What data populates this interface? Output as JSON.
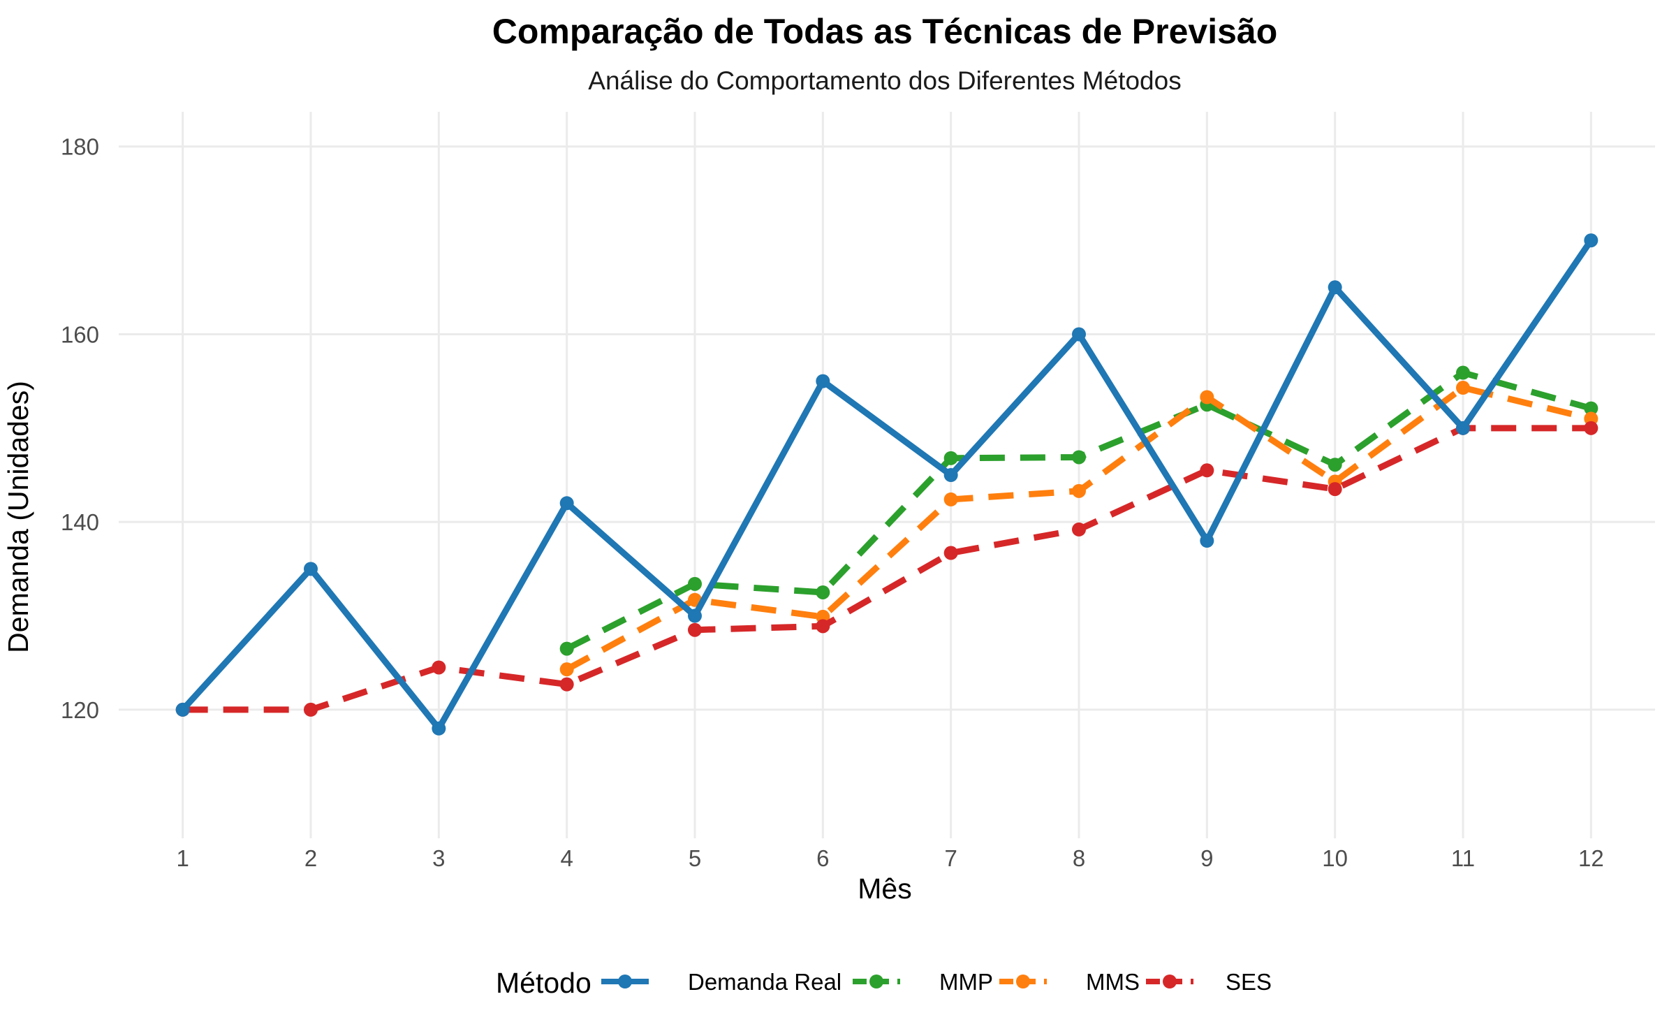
{
  "chart_data": {
    "type": "line",
    "title": "Comparação de Todas as Técnicas de Previsão",
    "subtitle": "Análise do Comportamento dos Diferentes Métodos",
    "xlabel": "Mês",
    "ylabel": "Demanda (Unidades)",
    "x": [
      1,
      2,
      3,
      4,
      5,
      6,
      7,
      8,
      9,
      10,
      11,
      12
    ],
    "xlim": [
      0.5,
      12.5
    ],
    "ylim": [
      106.3,
      183.7
    ],
    "yticks": [
      120,
      140,
      160,
      180
    ],
    "grid": true,
    "legend": {
      "title": "Método",
      "position": "bottom"
    },
    "series": [
      {
        "name": "Demanda Real",
        "color": "#1F77B4",
        "dashed": false,
        "values": [
          120,
          135,
          118,
          142,
          130,
          155,
          145,
          160,
          138,
          165,
          150,
          170
        ]
      },
      {
        "name": "MMP",
        "color": "#2CA02C",
        "dashed": true,
        "values": [
          null,
          null,
          null,
          126.5,
          133.4,
          132.5,
          146.8,
          146.9,
          152.5,
          146.1,
          155.9,
          152.1
        ]
      },
      {
        "name": "MMS",
        "color": "#FF7F0E",
        "dashed": true,
        "values": [
          null,
          null,
          null,
          124.3,
          131.7,
          129.9,
          142.4,
          143.3,
          153.3,
          144.3,
          154.3,
          151.0
        ]
      },
      {
        "name": "SES",
        "color": "#D62728",
        "dashed": true,
        "values": [
          120,
          120,
          124.5,
          122.7,
          128.5,
          128.9,
          136.7,
          139.2,
          145.5,
          143.5,
          150.0,
          150.0
        ]
      }
    ]
  }
}
